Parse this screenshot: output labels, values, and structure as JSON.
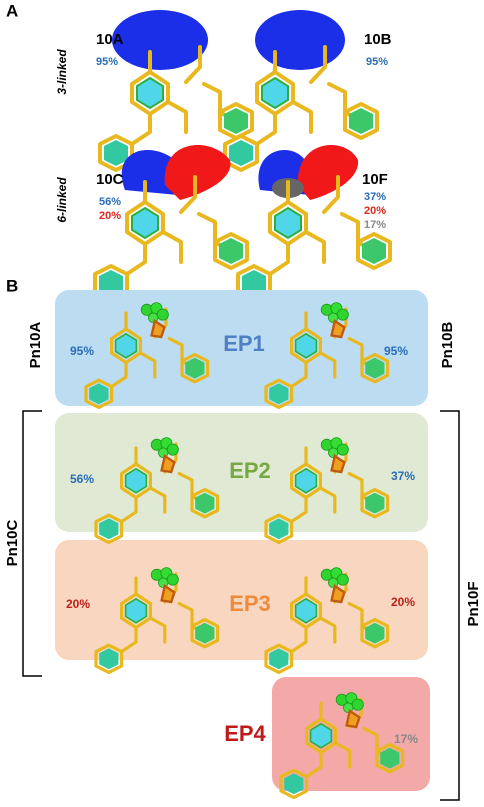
{
  "panel_a": {
    "label": "A",
    "rows": [
      {
        "label": "3-linked",
        "items": [
          {
            "name": "10A",
            "percents": [
              "95%"
            ]
          },
          {
            "name": "10B",
            "percents": [
              "95%"
            ]
          }
        ]
      },
      {
        "label": "6-linked",
        "items": [
          {
            "name": "10C",
            "percents": [
              "56%",
              "20%"
            ]
          },
          {
            "name": "10F",
            "percents": [
              "37%",
              "20%",
              "17%"
            ]
          }
        ]
      }
    ]
  },
  "panel_b": {
    "label": "B",
    "side_labels": {
      "top_left": "Pn10A",
      "top_right": "Pn10B",
      "left": "Pn10C",
      "right": "Pn10F"
    },
    "boxes": [
      {
        "name": "EP1",
        "left": "95%",
        "right": "95%"
      },
      {
        "name": "EP2",
        "left": "56%",
        "right": "37%"
      },
      {
        "name": "EP3",
        "left": "20%",
        "right": "20%"
      },
      {
        "name": "EP4",
        "right": "17%"
      }
    ]
  }
}
